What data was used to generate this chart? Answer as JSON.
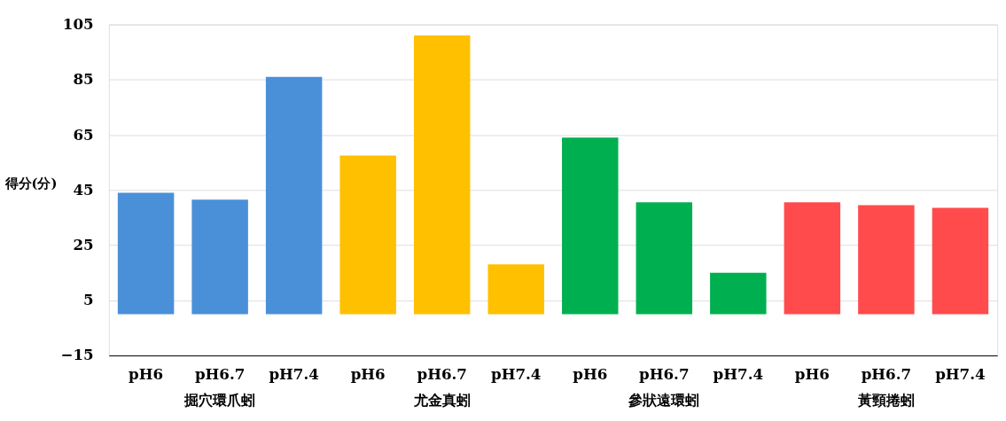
{
  "chart_data": {
    "type": "bar",
    "ylabel": "得分(分)",
    "categories": [
      "pH6",
      "pH6.7",
      "pH7.4",
      "pH6",
      "pH6.7",
      "pH7.4",
      "pH6",
      "pH6.7",
      "pH7.4",
      "pH6",
      "pH6.7",
      "pH7.4"
    ],
    "values": [
      44,
      41.5,
      86,
      57.5,
      101,
      18,
      64,
      40.5,
      15,
      40.5,
      39.5,
      38.5
    ],
    "colors": [
      "#4a90d9",
      "#4a90d9",
      "#4a90d9",
      "#ffc000",
      "#ffc000",
      "#ffc000",
      "#00b050",
      "#00b050",
      "#00b050",
      "#ff4b4b",
      "#ff4b4b",
      "#ff4b4b"
    ],
    "annotations": [
      "掘穴環爪蚓",
      "尤金真蚓",
      "參狀遠環蚓",
      "黃頸捲蚓"
    ],
    "ylim": [
      -15,
      105
    ],
    "yticks": [
      -15,
      5,
      25,
      45,
      65,
      85,
      105
    ],
    "grid": "y",
    "legend": false
  }
}
